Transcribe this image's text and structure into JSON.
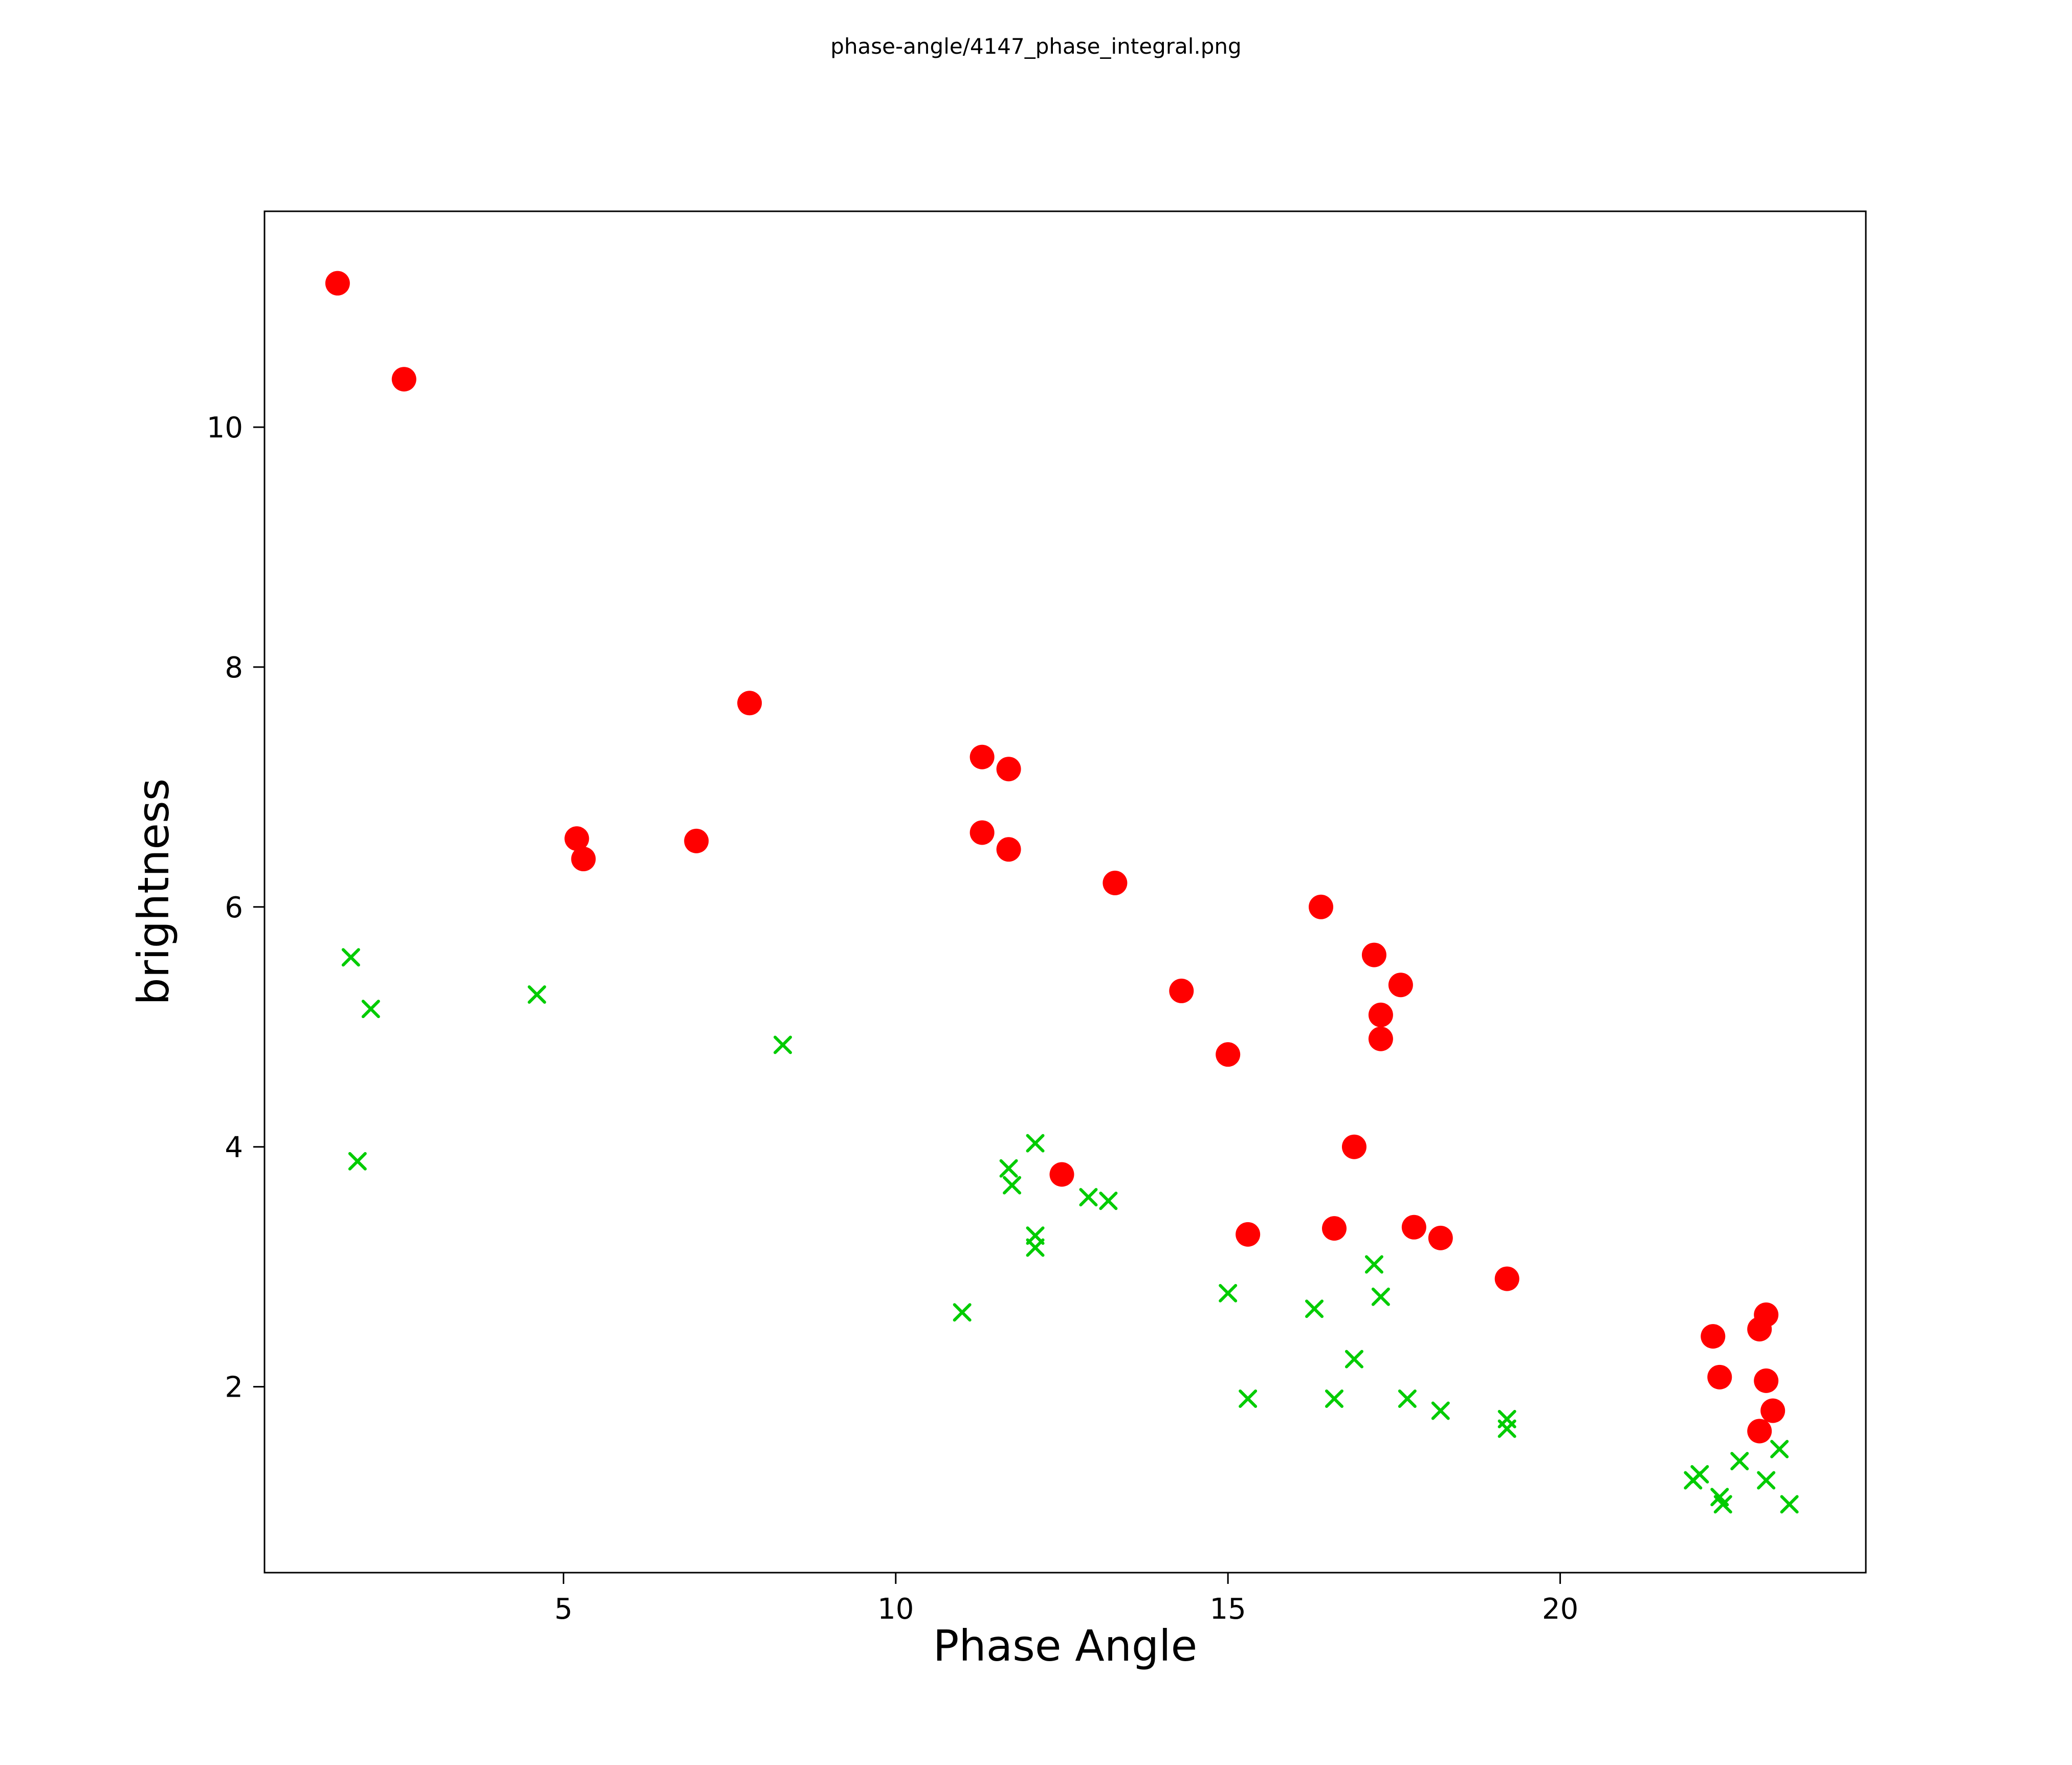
{
  "page": {
    "title": "phase-angle/4147_phase_integral.png"
  },
  "chart_data": {
    "type": "scatter",
    "title": "phase-angle/4147_phase_integral.png",
    "xlabel": "Phase Angle",
    "ylabel": "brightness",
    "xlim": [
      0.5,
      24.6
    ],
    "ylim": [
      0.45,
      11.8
    ],
    "x_ticks": [
      5,
      10,
      15,
      20
    ],
    "y_ticks": [
      2,
      4,
      6,
      8,
      10
    ],
    "grid": false,
    "legend": "none",
    "series": [
      {
        "name": "red-circles",
        "marker": "circle",
        "color": "#ff0000",
        "points": [
          [
            1.6,
            11.2
          ],
          [
            2.6,
            10.4
          ],
          [
            7.8,
            7.7
          ],
          [
            5.2,
            6.57
          ],
          [
            5.3,
            6.4
          ],
          [
            7.0,
            6.55
          ],
          [
            11.3,
            7.25
          ],
          [
            11.7,
            7.15
          ],
          [
            11.3,
            6.62
          ],
          [
            11.7,
            6.48
          ],
          [
            13.3,
            6.2
          ],
          [
            16.4,
            6.0
          ],
          [
            14.3,
            5.3
          ],
          [
            17.2,
            5.6
          ],
          [
            17.6,
            5.35
          ],
          [
            17.3,
            5.1
          ],
          [
            17.3,
            4.9
          ],
          [
            15.0,
            4.77
          ],
          [
            16.9,
            4.0
          ],
          [
            12.5,
            3.77
          ],
          [
            15.3,
            3.27
          ],
          [
            16.6,
            3.32
          ],
          [
            17.8,
            3.33
          ],
          [
            18.2,
            3.24
          ],
          [
            19.2,
            2.9
          ],
          [
            22.3,
            2.42
          ],
          [
            23.1,
            2.6
          ],
          [
            23.0,
            2.48
          ],
          [
            22.4,
            2.08
          ],
          [
            23.1,
            2.05
          ],
          [
            23.2,
            1.8
          ],
          [
            23.0,
            1.63
          ]
        ]
      },
      {
        "name": "green-crosses",
        "marker": "x",
        "color": "#00cc00",
        "points": [
          [
            1.8,
            5.58
          ],
          [
            2.1,
            5.15
          ],
          [
            4.6,
            5.27
          ],
          [
            1.9,
            3.88
          ],
          [
            8.3,
            4.85
          ],
          [
            12.1,
            4.03
          ],
          [
            11.7,
            3.82
          ],
          [
            11.75,
            3.68
          ],
          [
            12.9,
            3.58
          ],
          [
            13.2,
            3.55
          ],
          [
            12.1,
            3.26
          ],
          [
            12.1,
            3.16
          ],
          [
            11.0,
            2.62
          ],
          [
            15.0,
            2.78
          ],
          [
            16.3,
            2.65
          ],
          [
            17.2,
            3.02
          ],
          [
            17.3,
            2.75
          ],
          [
            16.9,
            2.23
          ],
          [
            15.3,
            1.9
          ],
          [
            16.6,
            1.9
          ],
          [
            17.7,
            1.9
          ],
          [
            18.2,
            1.8
          ],
          [
            19.2,
            1.73
          ],
          [
            19.2,
            1.65
          ],
          [
            22.0,
            1.22
          ],
          [
            22.1,
            1.27
          ],
          [
            22.4,
            1.08
          ],
          [
            22.45,
            1.02
          ],
          [
            22.7,
            1.38
          ],
          [
            23.1,
            1.22
          ],
          [
            23.3,
            1.48
          ],
          [
            23.45,
            1.02
          ]
        ]
      }
    ]
  }
}
